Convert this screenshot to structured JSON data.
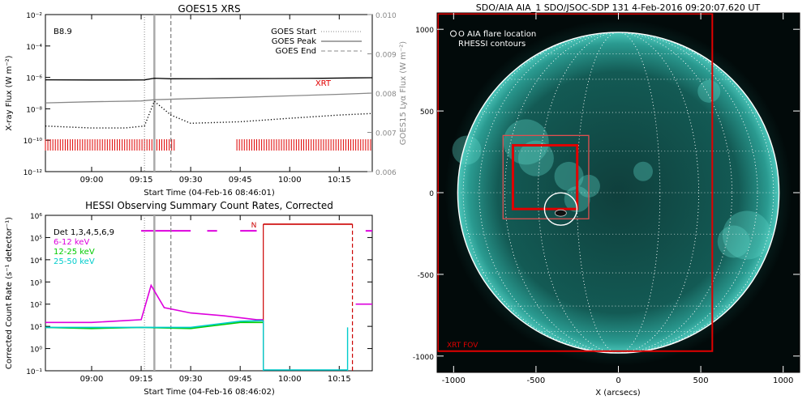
{
  "chart_data": [
    {
      "type": "line",
      "title": "GOES15 XRS",
      "xlabel": "Start Time (04-Feb-16 08:46:01)",
      "ylabel": "X-ray Flux (W m⁻²)",
      "ylabel_right": "GOES15 Lyα Flux (W m⁻²)",
      "yscale": "log",
      "ylim": [
        1e-12,
        0.01
      ],
      "ylim_right": [
        0.006,
        0.01
      ],
      "x_ticks": [
        "09:00",
        "09:15",
        "09:30",
        "09:45",
        "10:00",
        "10:15"
      ],
      "y_ticks": [
        "10⁻²",
        "10⁻⁴",
        "10⁻⁶",
        "10⁻⁸",
        "10⁻¹⁰",
        "10⁻¹²"
      ],
      "y_ticks_right": [
        "0.010",
        "0.009",
        "0.008",
        "0.007",
        "0.006"
      ],
      "goes_class": "B8.9",
      "legend": [
        {
          "label": "GOES Start",
          "style": "dotted",
          "time": "09:16"
        },
        {
          "label": "GOES Peak",
          "style": "solid",
          "time": "09:19"
        },
        {
          "label": "GOES End",
          "style": "dashed",
          "time": "09:24"
        }
      ],
      "annotation": "XRT",
      "series": [
        {
          "name": "",
          "color": "#000000",
          "style": "solid",
          "x": [
            "08:46",
            "09:00",
            "09:10",
            "09:16",
            "09:19",
            "09:24",
            "09:40",
            "09:55",
            "10:10",
            "10:20",
            "10:25"
          ],
          "y": [
            7e-07,
            6.8e-07,
            6.8e-07,
            6.9e-07,
            8.9e-07,
            8.2e-07,
            8.3e-07,
            8.5e-07,
            8.8e-07,
            9.3e-07,
            9.5e-07
          ]
        },
        {
          "name": "",
          "color": "#888888",
          "style": "solid",
          "axis": "right",
          "x": [
            "08:46",
            "09:00",
            "09:15",
            "09:19",
            "09:30",
            "09:45",
            "10:00",
            "10:15",
            "10:25"
          ],
          "y": [
            0.00775,
            0.00778,
            0.0078,
            0.00783,
            0.00786,
            0.00789,
            0.00793,
            0.00797,
            0.008
          ]
        },
        {
          "name": "",
          "color": "#000000",
          "style": "dotted",
          "x": [
            "08:46",
            "09:00",
            "09:10",
            "09:16",
            "09:19",
            "09:24",
            "09:30",
            "09:45",
            "10:00",
            "10:15",
            "10:25"
          ],
          "y": [
            8e-10,
            6e-10,
            6e-10,
            8e-10,
            3e-08,
            4e-09,
            1.2e-09,
            1.5e-09,
            2.5e-09,
            4e-09,
            5e-09
          ]
        }
      ],
      "xrt_coverage": [
        [
          "08:46",
          "09:25"
        ],
        [
          "09:44",
          "10:25"
        ]
      ]
    },
    {
      "type": "line",
      "title": "HESSI Observing Summary Count Rates, Corrected",
      "xlabel": "Start Time (04-Feb-16 08:46:02)",
      "ylabel": "Corrected Count Rate (s⁻¹ detector⁻¹)",
      "yscale": "log",
      "ylim": [
        0.1,
        1000000
      ],
      "x_ticks": [
        "09:00",
        "09:15",
        "09:30",
        "09:45",
        "10:00",
        "10:15"
      ],
      "y_ticks": [
        "10⁶",
        "10⁵",
        "10⁴",
        "10³",
        "10²",
        "10¹",
        "10⁰",
        "10⁻¹"
      ],
      "detectors": "Det 1,3,4,5,6,9",
      "night_label": "N",
      "series": [
        {
          "name": "6-12 keV",
          "color": "#dd00dd",
          "x": [
            "08:46",
            "09:00",
            "09:10",
            "09:15",
            "09:18",
            "09:22",
            "09:30",
            "09:40",
            "09:50",
            "09:52",
            "10:17",
            "10:20",
            "10:25"
          ],
          "y": [
            15,
            15,
            18,
            20,
            700,
            70,
            40,
            30,
            20,
            20,
            10,
            100,
            100
          ]
        },
        {
          "name": "12-25 keV",
          "color": "#00cc00",
          "x": [
            "08:46",
            "09:00",
            "09:15",
            "09:30",
            "09:45",
            "09:52",
            "10:17",
            "10:25"
          ],
          "y": [
            9,
            8,
            9,
            8,
            15,
            15,
            8,
            8
          ]
        },
        {
          "name": "25-50 keV",
          "color": "#00cccc",
          "x": [
            "08:46",
            "09:00",
            "09:15",
            "09:30",
            "09:45",
            "09:52",
            "10:17",
            "10:25"
          ],
          "y": [
            9,
            9,
            9,
            9,
            17,
            18,
            9,
            9
          ]
        }
      ],
      "attenuator_state": [
        [
          "09:15",
          "09:30"
        ],
        [
          "09:35",
          "09:38"
        ],
        [
          "09:45",
          "09:50"
        ],
        [
          "10:23",
          "10:25"
        ]
      ],
      "night_interval": [
        "09:52",
        "10:19"
      ]
    },
    {
      "type": "image",
      "title": "SDO/AIA AIA_1 SDO/JSOC-SDP 131   4-Feb-2016 09:20:07.620 UT",
      "xlabel": "X (arcsecs)",
      "x_ticks": [
        "-1000",
        "-500",
        "0",
        "500",
        "1000"
      ],
      "y_ticks": [
        "1000",
        "500",
        "0",
        "-500",
        "-1000"
      ],
      "xlim": [
        -1100,
        1100
      ],
      "ylim": [
        -1100,
        1100
      ],
      "legend": [
        "O AIA flare location",
        "RHESSI contours"
      ],
      "fov_label": "XRT FOV",
      "flare_location": [
        -350,
        -100
      ]
    }
  ]
}
